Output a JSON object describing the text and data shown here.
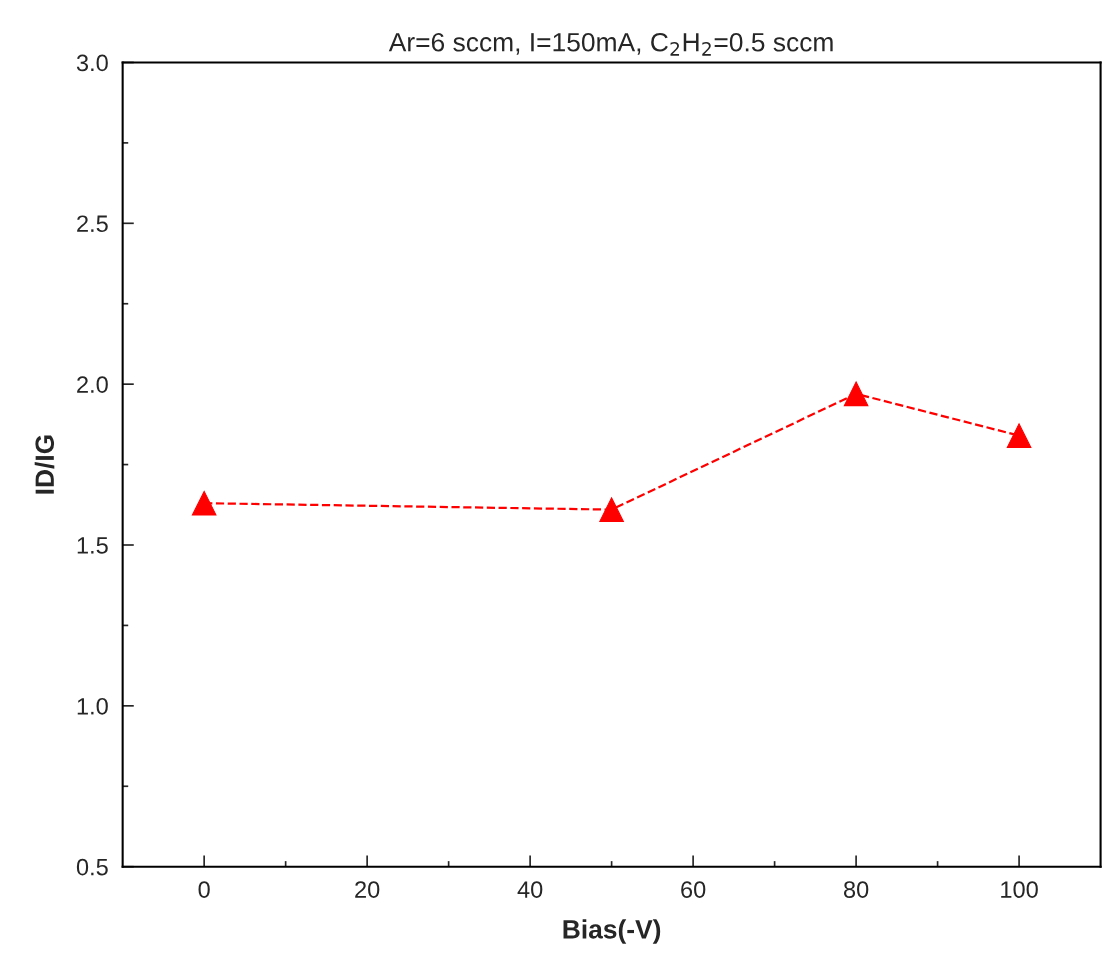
{
  "chart_data": {
    "type": "line",
    "title": "Ar=6 sccm, I=150mA, C$_{2}$H$_{2}$=0.5 sccm",
    "xlabel": "Bias(-V)",
    "ylabel": "ID/IG",
    "x": [
      0,
      50,
      80,
      100
    ],
    "series": [
      {
        "color": "#ff0000",
        "values": [
          1.63,
          1.61,
          1.97,
          1.84
        ]
      }
    ],
    "marker": "triangle",
    "line_style": "dashed",
    "grid": false,
    "xlim": [
      -10,
      110
    ],
    "ylim": [
      0.5,
      3.0
    ],
    "xticks": [
      0,
      {
        "value": 10,
        "label": null
      },
      20,
      {
        "value": 30,
        "label": null
      },
      40,
      {
        "value": 50,
        "label": null
      },
      60,
      {
        "value": 70,
        "label": null
      },
      80,
      {
        "value": 90,
        "label": null
      },
      100
    ],
    "yticks": [
      0.5,
      {
        "value": 0.75,
        "label": null
      },
      {
        "value": 1,
        "label": "1.0"
      },
      {
        "value": 1.25,
        "label": null
      },
      1.5,
      {
        "value": 1.75,
        "label": null
      },
      {
        "value": 2,
        "label": "2.0"
      },
      {
        "value": 2.25,
        "label": null
      },
      2.5,
      {
        "value": 2.75,
        "label": null
      },
      {
        "value": 3,
        "label": "3.0"
      }
    ]
  }
}
